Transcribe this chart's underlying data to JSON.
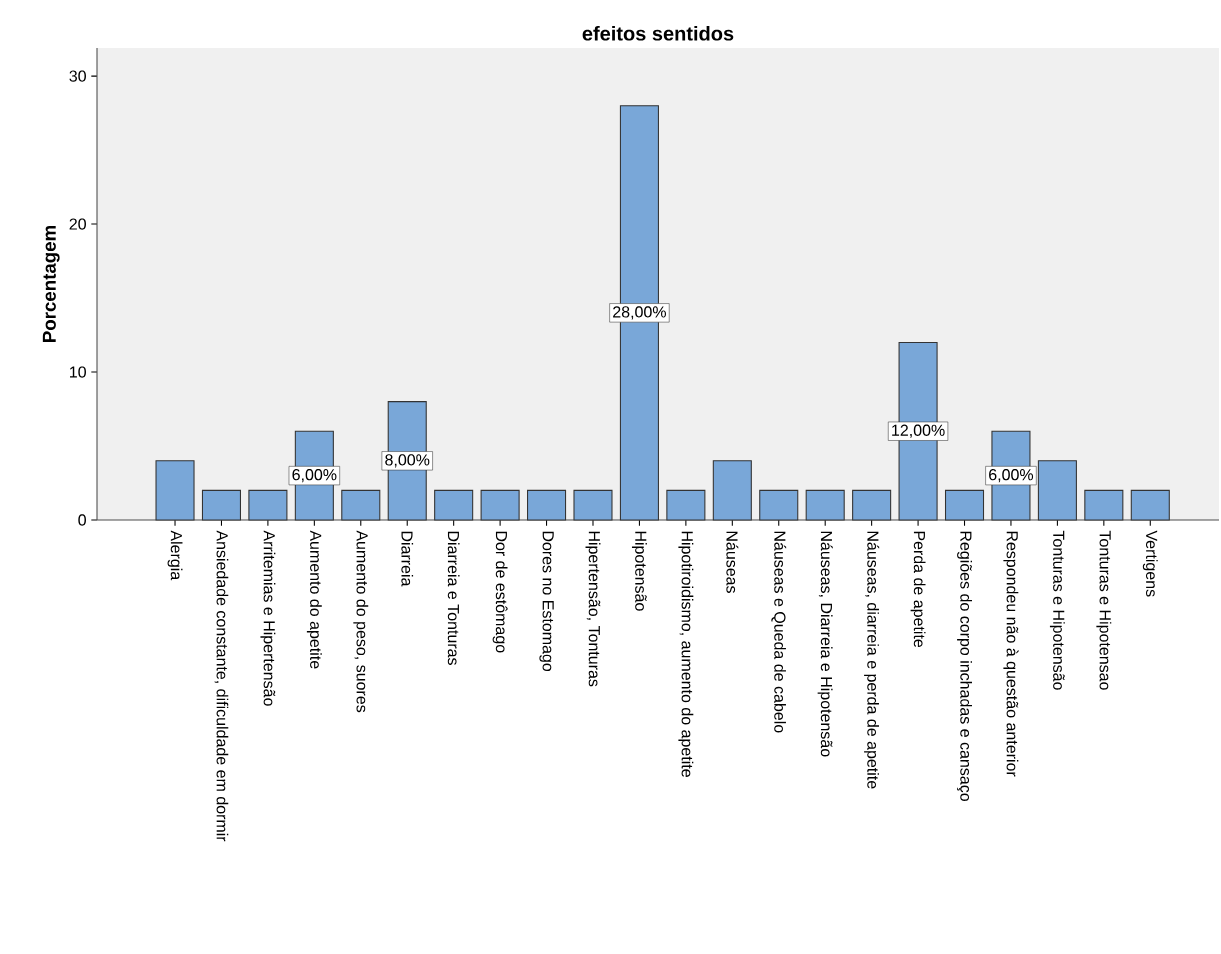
{
  "chart_data": {
    "type": "bar",
    "title": "efeitos sentidos",
    "ylabel": "Porcentagem",
    "categories": [
      "Alergia",
      "Ansiedade constante, dificuldade em dormir",
      "Arritemias e Hipertensão",
      "Aumento do apetite",
      "Aumento do peso, suores",
      "Diarreia",
      "Diarreia e Tonturas",
      "Dor de estômago",
      "Dores no Estomago",
      "Hipertensão, Tonturas",
      "Hipotensão",
      "Hipotiroidismo, aumento do apetite",
      "Náuseas",
      "Náuseas e Queda de cabelo",
      "Náuseas, Diarreia e Hipotensão",
      "Náuseas, diarreia e perda de apetite",
      "Perda de apetite",
      "Regiões do corpo inchadas e cansaço",
      "Respondeu não à questão anterior",
      "Tonturas e Hipotensão",
      "Tonturas e Hipotensao",
      "Vertigens"
    ],
    "values": [
      4,
      2,
      2,
      6,
      2,
      8,
      2,
      2,
      2,
      2,
      28,
      2,
      4,
      2,
      2,
      2,
      12,
      2,
      6,
      4,
      2,
      2
    ],
    "value_labels": [
      null,
      null,
      null,
      "6,00%",
      null,
      "8,00%",
      null,
      null,
      null,
      null,
      "28,00%",
      null,
      null,
      null,
      null,
      null,
      "12,00%",
      null,
      "6,00%",
      null,
      null,
      null
    ],
    "color": "#79a7d8",
    "ylim": [
      0,
      31.9
    ],
    "yticks": [
      0,
      10,
      20,
      30
    ]
  }
}
